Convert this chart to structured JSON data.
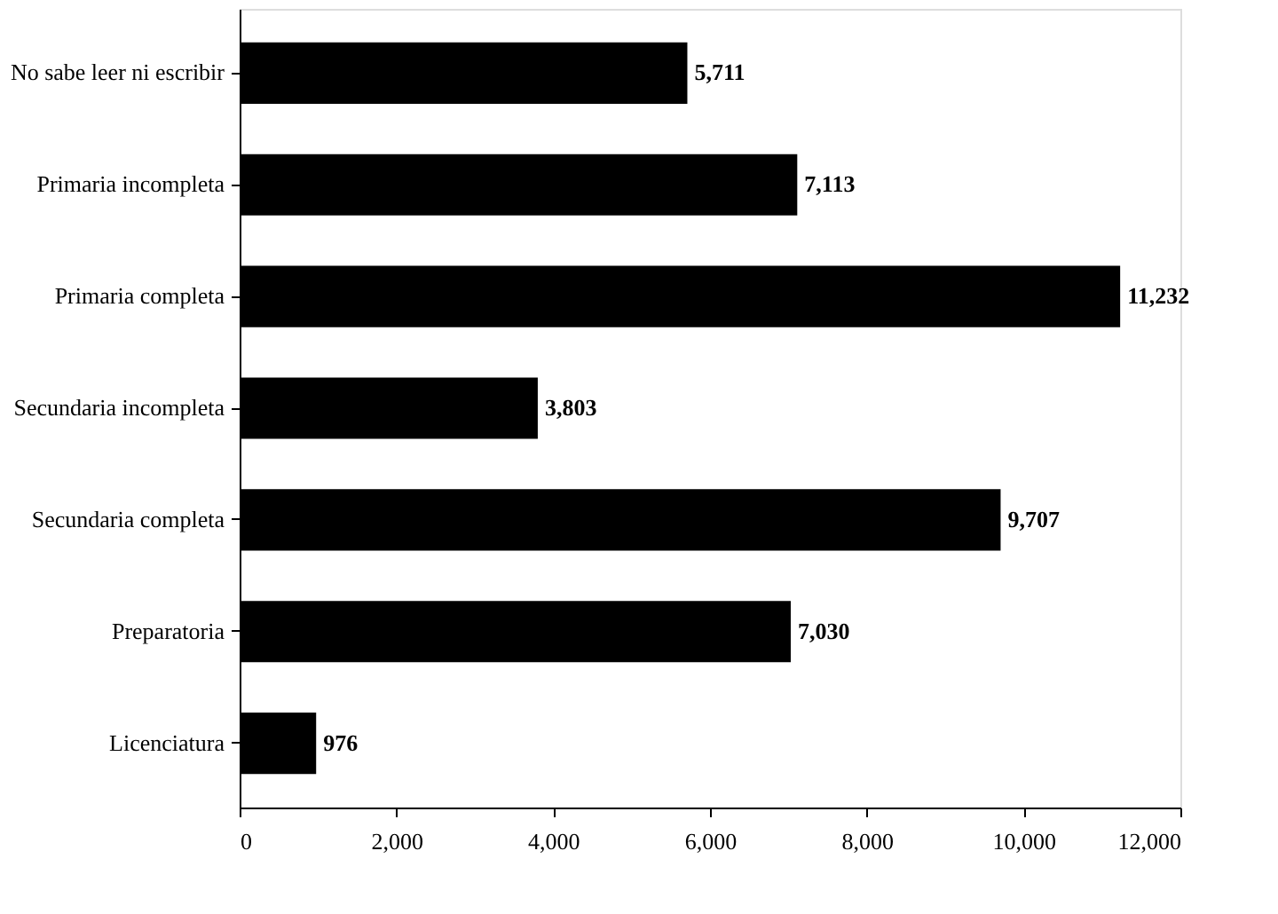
{
  "chart_data": {
    "type": "bar",
    "orientation": "horizontal",
    "categories": [
      "No sabe leer ni escribir",
      "Primaria incompleta",
      "Primaria completa",
      "Secundaria incompleta",
      "Secundaria completa",
      "Preparatoria",
      "Licenciatura"
    ],
    "values": [
      5711,
      7113,
      11232,
      3803,
      9707,
      7030,
      976
    ],
    "color": "#000000",
    "xlim": [
      0,
      12000
    ],
    "xticks": [
      0,
      {
        "value": 2000,
        "label": "2,000"
      },
      {
        "value": 4000,
        "label": "4,000"
      },
      {
        "value": 6000,
        "label": "6,000"
      },
      {
        "value": 8000,
        "label": "8,000"
      },
      {
        "value": 10000,
        "label": "10,000"
      },
      {
        "value": 12000,
        "label": "12,000"
      }
    ],
    "value_labels": [
      "5,711",
      "7,113",
      "11,232",
      "3,803",
      "9,707",
      "7,030",
      "976"
    ],
    "grid": false
  }
}
